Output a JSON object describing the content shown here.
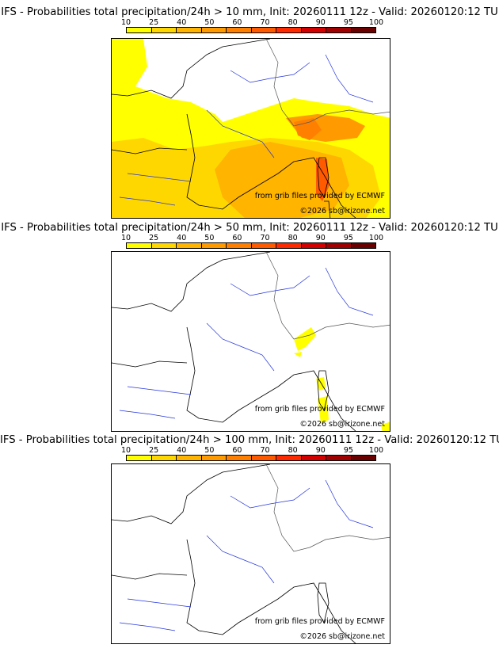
{
  "colorbar": {
    "ticks": [
      "10",
      "25",
      "40",
      "50",
      "60",
      "70",
      "80",
      "90",
      "95",
      "100"
    ],
    "colors": [
      "#ffff00",
      "#ffd700",
      "#ffb400",
      "#ff9a00",
      "#ff7f00",
      "#ff5a00",
      "#ff2a00",
      "#d40000",
      "#a00000",
      "#6b0000"
    ]
  },
  "panels": [
    {
      "title": "IFS - Probabilities total precipitation/24h > 10 mm, Init: 20260111 12z - Valid: 20260120:12 TU",
      "threshold_mm": 10,
      "source_credit": "from grib files provided by ECMWF",
      "copyright": "©2026 sb@irizone.net"
    },
    {
      "title": "IFS - Probabilities total precipitation/24h > 50 mm, Init: 20260111 12z - Valid: 20260120:12 TU",
      "threshold_mm": 50,
      "source_credit": "from grib files provided by ECMWF",
      "copyright": "©2026 sb@irizone.net"
    },
    {
      "title": "IFS - Probabilities total precipitation/24h > 100 mm, Init: 20260111 12z - Valid: 20260120:12 TU",
      "threshold_mm": 100,
      "source_credit": "from grib files provided by ECMWF",
      "copyright": "©2026 sb@irizone.net"
    }
  ]
}
